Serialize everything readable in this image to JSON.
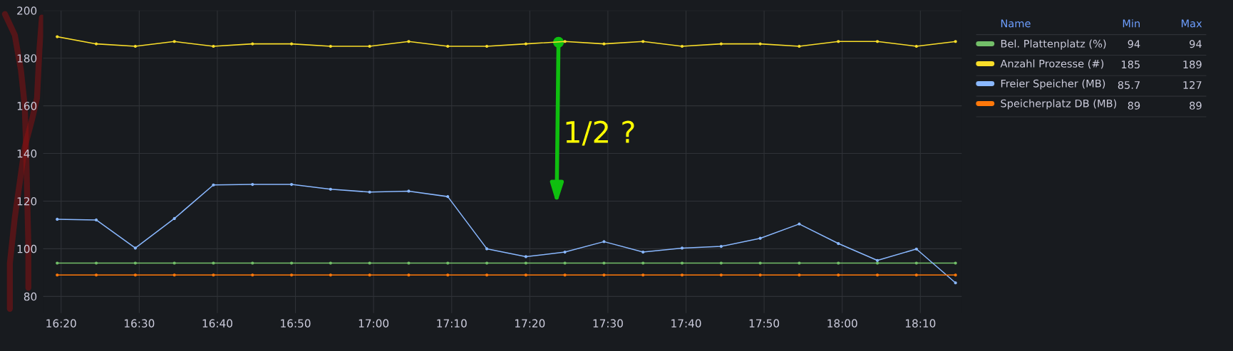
{
  "chart_data": {
    "type": "line",
    "x": [
      16.325,
      16.4083,
      16.4917,
      16.575,
      16.6583,
      16.7417,
      16.825,
      16.9083,
      16.9917,
      17.075,
      17.1583,
      17.2417,
      17.325,
      17.4083,
      17.4917,
      17.575,
      17.6583,
      17.7417,
      17.825,
      17.9083,
      17.9917,
      18.075,
      18.1583,
      18.2417
    ],
    "series": [
      {
        "name": "Bel. Plattenplatz (%)",
        "color": "#73bf69",
        "values": [
          94,
          94,
          94,
          94,
          94,
          94,
          94,
          94,
          94,
          94,
          94,
          94,
          94,
          94,
          94,
          94,
          94,
          94,
          94,
          94,
          94,
          94,
          94,
          94
        ]
      },
      {
        "name": "Anzahl Prozesse (#)",
        "color": "#fade2a",
        "values": [
          189,
          186,
          185,
          187,
          185,
          186,
          186,
          185,
          185,
          187,
          185,
          185,
          186,
          187,
          186,
          187,
          185,
          186,
          186,
          185,
          187,
          187,
          185,
          187
        ]
      },
      {
        "name": "Freier Speicher (MB)",
        "color": "#8ab8ff",
        "values": [
          112.4,
          112.1,
          100.3,
          112.7,
          126.8,
          127,
          127,
          125,
          123.8,
          124.2,
          121.9,
          100,
          96.7,
          98.6,
          103,
          98.6,
          100.3,
          101,
          104.4,
          110.4,
          102.2,
          95.1,
          99.9,
          85.7
        ]
      },
      {
        "name": "Speicherplatz DB (MB)",
        "color": "#ff780a",
        "values": [
          89,
          89,
          89,
          89,
          89,
          89,
          89,
          89,
          89,
          89,
          89,
          89,
          89,
          89,
          89,
          89,
          89,
          89,
          89,
          89,
          89,
          89,
          89,
          89
        ]
      }
    ],
    "xlim": [
      16.295,
      18.255
    ],
    "xticks": [
      {
        "value": 16.3333,
        "label": "16:20"
      },
      {
        "value": 16.5,
        "label": "16:30"
      },
      {
        "value": 16.6667,
        "label": "16:40"
      },
      {
        "value": 16.8333,
        "label": "16:50"
      },
      {
        "value": 17,
        "label": "17:00"
      },
      {
        "value": 17.1667,
        "label": "17:10"
      },
      {
        "value": 17.3333,
        "label": "17:20"
      },
      {
        "value": 17.5,
        "label": "17:30"
      },
      {
        "value": 17.6667,
        "label": "17:40"
      },
      {
        "value": 17.8333,
        "label": "17:50"
      },
      {
        "value": 18,
        "label": "18:00"
      },
      {
        "value": 18.1667,
        "label": "18:10"
      }
    ],
    "ylim": [
      73,
      200
    ],
    "yticks": [
      80,
      100,
      120,
      140,
      160,
      180,
      200
    ],
    "annotations": [
      "1/2 ?",
      "Name",
      "Min",
      "Max",
      "94",
      "94",
      "185",
      "189",
      "85.7",
      "127",
      "89",
      "89"
    ],
    "grid": true,
    "legend": "right",
    "marker": "circle",
    "line_style": "solid"
  }
}
